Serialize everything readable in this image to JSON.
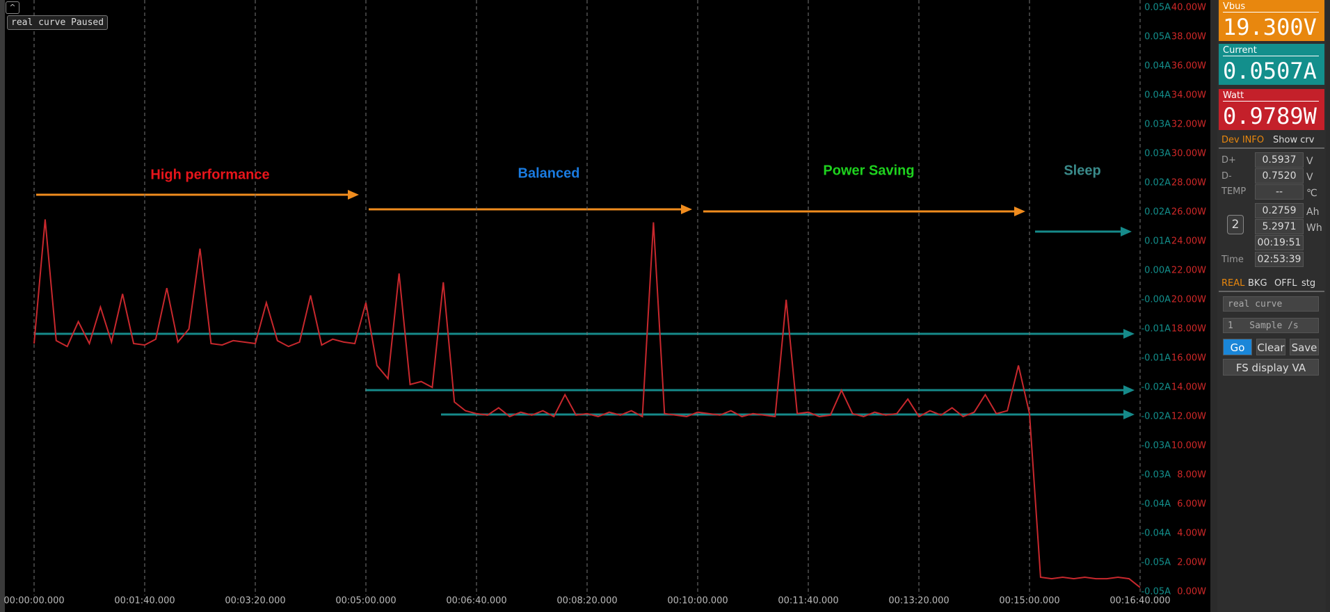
{
  "toolbar": {
    "status": "real curve Paused"
  },
  "chart_data": {
    "type": "line",
    "color": "#c8282d",
    "grid": true,
    "x": [
      0,
      10,
      20,
      30,
      40,
      50,
      60,
      70,
      80,
      90,
      100,
      110,
      120,
      130,
      140,
      150,
      160,
      170,
      180,
      190,
      200,
      210,
      220,
      230,
      240,
      250,
      260,
      270,
      280,
      290,
      300,
      310,
      320,
      330,
      340,
      350,
      360,
      370,
      380,
      390,
      400,
      410,
      420,
      430,
      440,
      450,
      460,
      470,
      480,
      490,
      500,
      510,
      520,
      530,
      540,
      550,
      560,
      570,
      580,
      590,
      600,
      610,
      620,
      630,
      640,
      650,
      660,
      670,
      680,
      690,
      700,
      710,
      720,
      730,
      740,
      750,
      760,
      770,
      780,
      790,
      800,
      810,
      820,
      830,
      840,
      850,
      860,
      870,
      880,
      890,
      900,
      910,
      920,
      930,
      940,
      950,
      960,
      970,
      980,
      990,
      1000
    ],
    "values": [
      17.0,
      25.5,
      17.2,
      16.8,
      18.5,
      17.0,
      19.5,
      17.1,
      20.4,
      17.0,
      16.9,
      17.3,
      20.8,
      17.1,
      18.0,
      23.5,
      17.0,
      16.9,
      17.2,
      17.1,
      17.0,
      19.8,
      17.2,
      16.8,
      17.1,
      20.3,
      16.9,
      17.3,
      17.1,
      17.0,
      19.8,
      15.5,
      14.6,
      21.8,
      14.2,
      14.4,
      14.0,
      21.2,
      13.0,
      12.4,
      12.2,
      12.1,
      12.6,
      12.0,
      12.3,
      12.1,
      12.4,
      12.0,
      13.5,
      12.1,
      12.2,
      12.0,
      12.3,
      12.1,
      12.4,
      12.0,
      25.3,
      12.2,
      12.1,
      12.0,
      12.3,
      12.2,
      12.1,
      12.4,
      12.0,
      12.2,
      12.1,
      12.0,
      20.0,
      12.2,
      12.3,
      12.0,
      12.1,
      13.8,
      12.2,
      12.0,
      12.3,
      12.1,
      12.2,
      13.2,
      12.0,
      12.4,
      12.1,
      12.6,
      12.0,
      12.3,
      13.5,
      12.2,
      12.4,
      15.5,
      12.2,
      1.0,
      0.9,
      1.0,
      0.9,
      1.0,
      0.9,
      0.9,
      1.0,
      0.9,
      0.3
    ],
    "xlim": [
      0,
      1000
    ],
    "xticks": [
      {
        "value": 0,
        "label": "00:00:00.000"
      },
      {
        "value": 100,
        "label": "00:01:40.000"
      },
      {
        "value": 200,
        "label": "00:03:20.000"
      },
      {
        "value": 300,
        "label": "00:05:00.000"
      },
      {
        "value": 400,
        "label": "00:06:40.000"
      },
      {
        "value": 500,
        "label": "00:08:20.000"
      },
      {
        "value": 600,
        "label": "00:10:00.000"
      },
      {
        "value": 700,
        "label": "00:11:40.000"
      },
      {
        "value": 800,
        "label": "00:13:20.000"
      },
      {
        "value": 900,
        "label": "00:15:00.000"
      },
      {
        "value": 1000,
        "label": "00:16:40.000"
      }
    ],
    "ylim": [
      0,
      40
    ],
    "yticks": [
      {
        "value": 0,
        "label": "0.00W"
      },
      {
        "value": 2,
        "label": "2.00W"
      },
      {
        "value": 4,
        "label": "4.00W"
      },
      {
        "value": 6,
        "label": "6.00W"
      },
      {
        "value": 8,
        "label": "8.00W"
      },
      {
        "value": 10,
        "label": "10.00W"
      },
      {
        "value": 12,
        "label": "12.00W"
      },
      {
        "value": 14,
        "label": "14.00W"
      },
      {
        "value": 16,
        "label": "16.00W"
      },
      {
        "value": 18,
        "label": "18.00W"
      },
      {
        "value": 20,
        "label": "20.00W"
      },
      {
        "value": 22,
        "label": "22.00W"
      },
      {
        "value": 24,
        "label": "24.00W"
      },
      {
        "value": 26,
        "label": "26.00W"
      },
      {
        "value": 28,
        "label": "28.00W"
      },
      {
        "value": 30,
        "label": "30.00W"
      },
      {
        "value": 32,
        "label": "32.00W"
      },
      {
        "value": 34,
        "label": "34.00W"
      },
      {
        "value": 36,
        "label": "36.00W"
      },
      {
        "value": 38,
        "label": "38.00W"
      },
      {
        "value": 40,
        "label": "40.00W"
      }
    ],
    "y2lim": [
      -0.05,
      0.05
    ],
    "y2ticks": [
      {
        "value": -0.05,
        "label": "-0.05A"
      },
      {
        "value": -0.045,
        "label": "-0.05A"
      },
      {
        "value": -0.04,
        "label": "-0.04A"
      },
      {
        "value": -0.035,
        "label": "-0.04A"
      },
      {
        "value": -0.03,
        "label": "-0.03A"
      },
      {
        "value": -0.025,
        "label": "-0.03A"
      },
      {
        "value": -0.02,
        "label": "-0.02A"
      },
      {
        "value": -0.015,
        "label": "-0.02A"
      },
      {
        "value": -0.01,
        "label": "-0.01A"
      },
      {
        "value": -0.005,
        "label": "-0.01A"
      },
      {
        "value": 0,
        "label": "-0.00A"
      },
      {
        "value": 0.005,
        "label": "0.00A"
      },
      {
        "value": 0.01,
        "label": "0.01A"
      },
      {
        "value": 0.015,
        "label": "0.02A"
      },
      {
        "value": 0.02,
        "label": "0.02A"
      },
      {
        "value": 0.025,
        "label": "0.03A"
      },
      {
        "value": 0.03,
        "label": "0.03A"
      },
      {
        "value": 0.035,
        "label": "0.04A"
      },
      {
        "value": 0.04,
        "label": "0.04A"
      },
      {
        "value": 0.045,
        "label": "0.05A"
      },
      {
        "value": 0.05,
        "label": "0.05A"
      }
    ],
    "annotations": [
      {
        "text": "High performance",
        "color": "#e8151b"
      },
      {
        "text": "Balanced",
        "color": "#1a7be0"
      },
      {
        "text": "Power Saving",
        "color": "#1ed21e"
      },
      {
        "text": "Sleep",
        "color": "#3a8a8a"
      }
    ]
  },
  "panel": {
    "vbus": {
      "label": "Vbus",
      "value": "19.300V"
    },
    "current": {
      "label": "Current",
      "value": "0.0507A"
    },
    "watt": {
      "label": "Watt",
      "value": "0.9789W"
    },
    "tabs": [
      "Dev INFO",
      "Show crv"
    ],
    "info": {
      "dplus": {
        "label": "D+",
        "value": "0.5937",
        "unit": "V"
      },
      "dminus": {
        "label": "D-",
        "value": "0.7520",
        "unit": "V"
      },
      "temp": {
        "label": "TEMP",
        "value": "--",
        "unit": "℃"
      },
      "group": "2",
      "ah": {
        "value": "0.2759",
        "unit": "Ah"
      },
      "wh": {
        "value": "5.2971",
        "unit": "Wh"
      },
      "elapsed": "00:19:51",
      "time": {
        "label": "Time",
        "value": "02:53:39"
      }
    },
    "mode_tabs": [
      "REAL",
      "BKG",
      "OFFL",
      "stg"
    ],
    "curve_select": "real curve",
    "rate_select": "1   Sample /s",
    "buttons": [
      "Go",
      "Clear",
      "Save"
    ],
    "fs_button": "FS display VA"
  }
}
